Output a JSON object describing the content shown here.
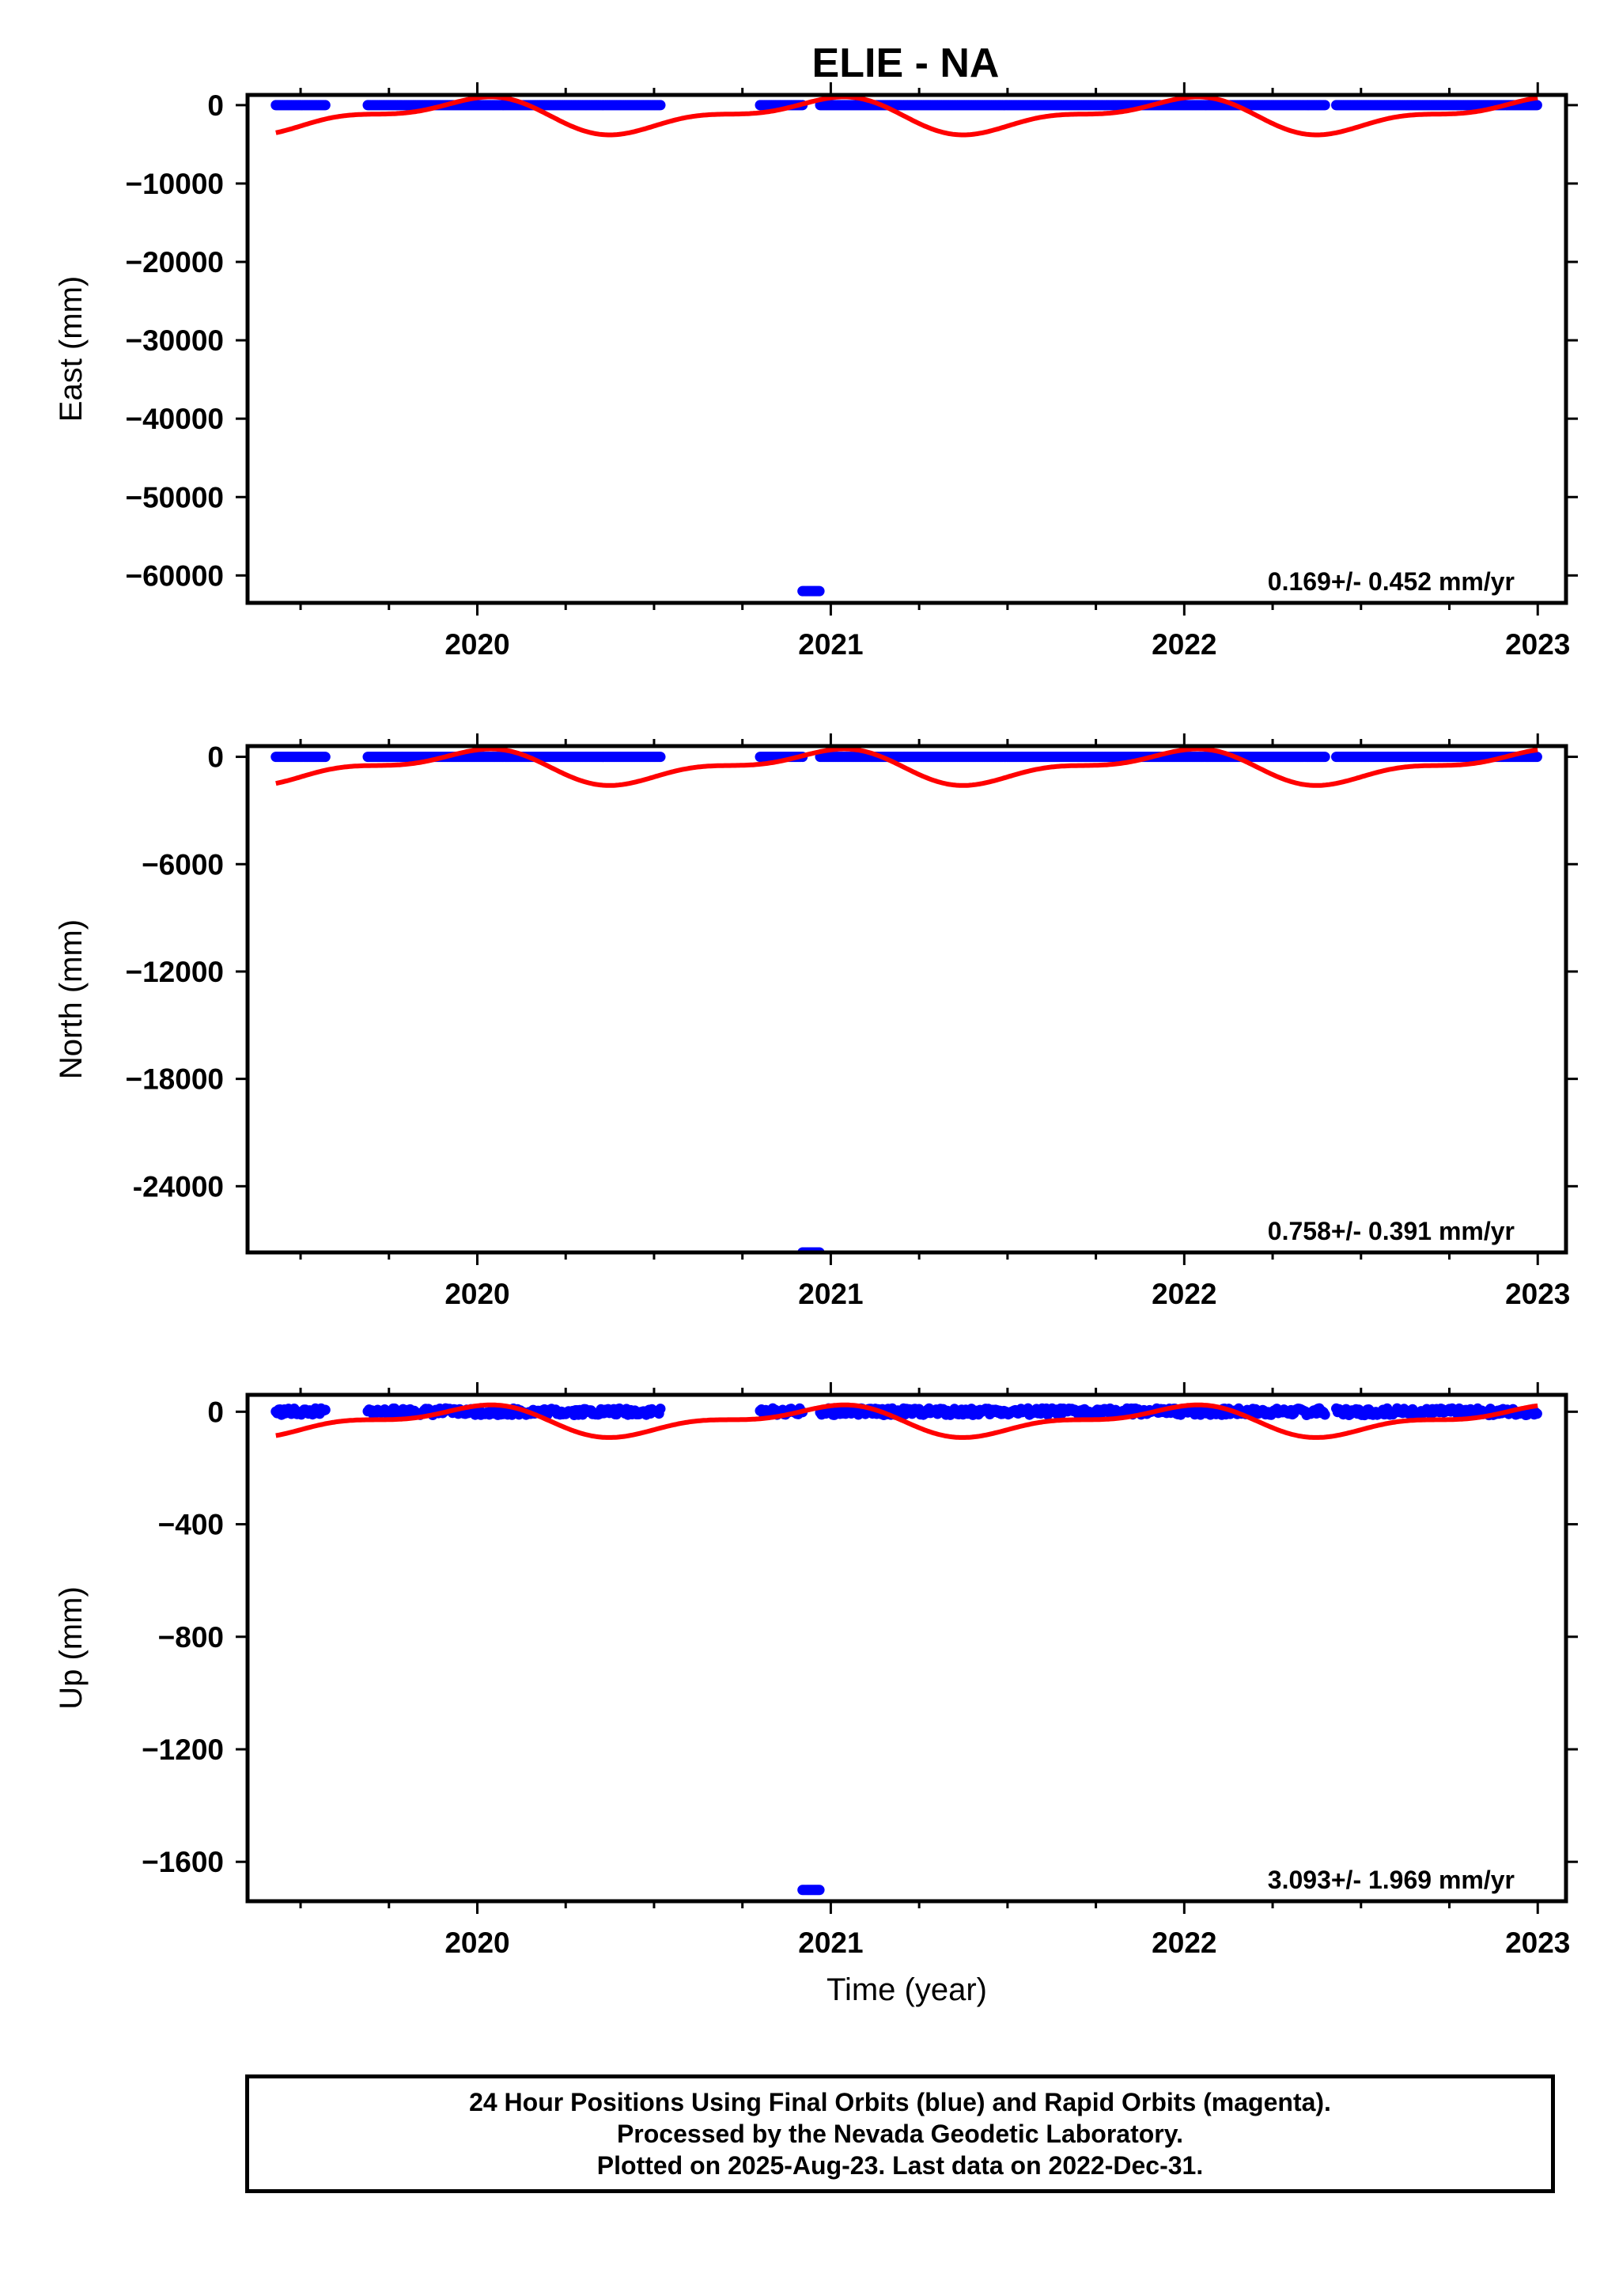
{
  "title": "ELIE - NA",
  "colors": {
    "data": "#0000ff",
    "model": "#ff0000",
    "frame": "#000000"
  },
  "chart_data": [
    {
      "type": "scatter",
      "ylabel": "East (mm)",
      "xlabel": "",
      "xlim": [
        2019.35,
        2023.08
      ],
      "ylim": [
        -63500,
        1300
      ],
      "xticks": [
        2020,
        2021,
        2022,
        2023
      ],
      "xtick_labels": [
        "2020",
        "2021",
        "2022",
        "2023"
      ],
      "yticks": [
        0,
        -10000,
        -20000,
        -30000,
        -40000,
        -50000,
        -60000
      ],
      "ytick_labels": [
        "0",
        "−10000",
        "−20000",
        "−30000",
        "−40000",
        "−50000",
        "−60000"
      ],
      "rate_label": "0.169+/- 0.452 mm/yr",
      "data_series": {
        "name": "24 Hour Positions",
        "segments": [
          [
            2019.43,
            2019.57
          ],
          [
            2019.69,
            2020.52
          ],
          [
            2020.8,
            2020.92
          ],
          [
            2020.97,
            2022.4
          ],
          [
            2022.43,
            2023.0
          ]
        ],
        "value": 0,
        "outliers": [
          {
            "x0": 2020.92,
            "x1": 2020.97,
            "y": -62000
          }
        ]
      },
      "model_series": {
        "name": "seasonal model",
        "x_range": [
          2019.43,
          2023.0
        ],
        "mean": -1300,
        "annual_amp": 1900,
        "semiannual_amp": 900,
        "annual_phase": 1.9,
        "semiannual_phase": 0.5
      }
    },
    {
      "type": "scatter",
      "ylabel": "North (mm)",
      "xlabel": "",
      "xlim": [
        2019.35,
        2023.08
      ],
      "ylim": [
        -27700,
        600
      ],
      "xticks": [
        2020,
        2021,
        2022,
        2023
      ],
      "xtick_labels": [
        "2020",
        "2021",
        "2022",
        "2023"
      ],
      "yticks": [
        0,
        -6000,
        -12000,
        -18000,
        -24000
      ],
      "ytick_labels": [
        "0",
        "−6000",
        "−12000",
        "−18000",
        "-24000"
      ],
      "rate_label": "0.758+/- 0.391 mm/yr",
      "data_series": {
        "name": "24 Hour Positions",
        "segments": [
          [
            2019.43,
            2019.57
          ],
          [
            2019.69,
            2020.52
          ],
          [
            2020.8,
            2020.92
          ],
          [
            2020.97,
            2022.4
          ],
          [
            2022.43,
            2023.0
          ]
        ],
        "value": 0,
        "outliers": [
          {
            "x0": 2020.92,
            "x1": 2020.97,
            "y": -27700
          }
        ]
      },
      "model_series": {
        "name": "seasonal model",
        "x_range": [
          2019.43,
          2023.0
        ],
        "mean": -550,
        "annual_amp": 800,
        "semiannual_amp": 380,
        "annual_phase": 1.9,
        "semiannual_phase": 0.5
      }
    },
    {
      "type": "scatter",
      "ylabel": "Up (mm)",
      "xlabel": "Time (year)",
      "xlim": [
        2019.35,
        2023.08
      ],
      "ylim": [
        -1740,
        60
      ],
      "xticks": [
        2020,
        2021,
        2022,
        2023
      ],
      "xtick_labels": [
        "2020",
        "2021",
        "2022",
        "2023"
      ],
      "yticks": [
        0,
        -400,
        -800,
        -1200,
        -1600
      ],
      "ytick_labels": [
        "0",
        "−400",
        "−800",
        "−1200",
        "−1600"
      ],
      "rate_label": "3.093+/- 1.969 mm/yr",
      "data_series": {
        "name": "24 Hour Positions",
        "segments": [
          [
            2019.43,
            2019.57
          ],
          [
            2019.69,
            2020.52
          ],
          [
            2020.8,
            2020.92
          ],
          [
            2020.97,
            2022.4
          ],
          [
            2022.43,
            2023.0
          ]
        ],
        "value": 0,
        "scatter_amplitude": 12,
        "outliers": [
          {
            "x0": 2020.92,
            "x1": 2020.97,
            "y": -1700
          }
        ]
      },
      "model_series": {
        "name": "seasonal model",
        "x_range": [
          2019.43,
          2023.0
        ],
        "mean": -32,
        "annual_amp": 45,
        "semiannual_amp": 22,
        "annual_phase": 1.9,
        "semiannual_phase": 0.5
      }
    }
  ],
  "footer": {
    "line1": "24 Hour Positions Using Final Orbits (blue) and Rapid Orbits (magenta).",
    "line2": "Processed by the Nevada Geodetic Laboratory.",
    "line3": "Plotted on 2025-Aug-23. Last data on 2022-Dec-31."
  }
}
